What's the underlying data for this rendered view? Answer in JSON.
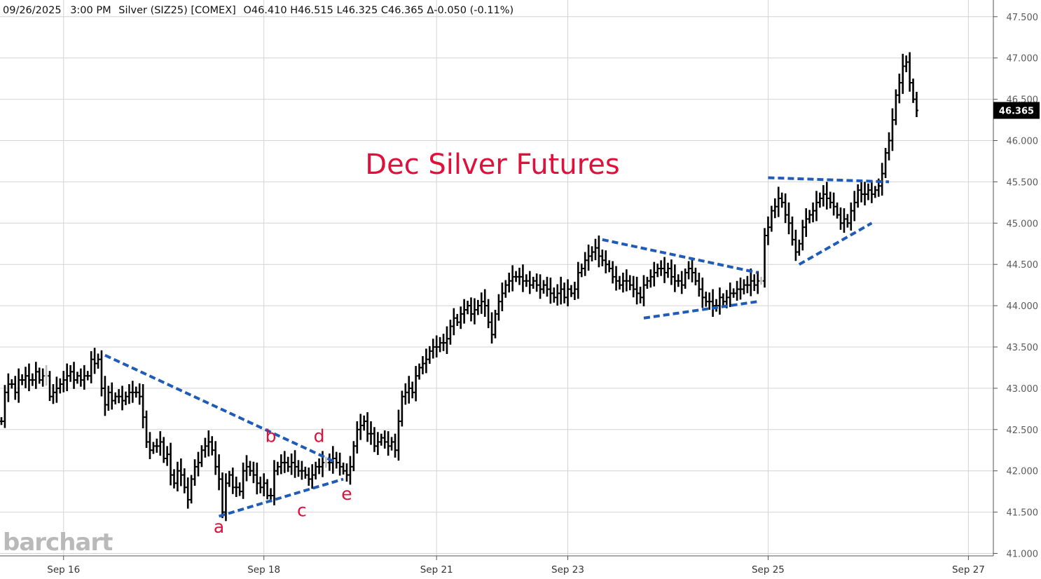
{
  "header": {
    "date": "09/26/2025",
    "time": "3:00 PM",
    "instrument": "Silver (SIZ25) [COMEX]",
    "ohlc": "O46.410 H46.515 L46.325 C46.365 Δ-0.050 (-0.11%)"
  },
  "branding": {
    "logo_text": "barchart"
  },
  "chart_data": {
    "type": "ohlc-bar",
    "title": "Dec Silver Futures",
    "title_color": "#e0103a",
    "bar_color": "#000000",
    "neutral_bar_color": "#bdbdbd",
    "trendline_color": "#1f5cb8",
    "wave_label_color": "#e0103a",
    "grid": true,
    "yaxis": {
      "position": "right",
      "ylim": [
        41.0,
        47.6
      ],
      "ticks": [
        41.0,
        41.5,
        42.0,
        42.5,
        43.0,
        43.5,
        44.0,
        44.5,
        45.0,
        45.5,
        46.0,
        46.5,
        47.0,
        47.5
      ],
      "tick_labels": [
        "41.000",
        "41.500",
        "42.000",
        "42.500",
        "43.000",
        "43.500",
        "44.000",
        "44.500",
        "45.000",
        "45.500",
        "46.000",
        "46.500",
        "47.000",
        "47.500"
      ]
    },
    "xaxis": {
      "xlim": [
        0,
        292
      ],
      "ticks": [
        {
          "x": 18,
          "label": "Sep 16"
        },
        {
          "x": 76,
          "label": "Sep 18"
        },
        {
          "x": 126,
          "label": "Sep 21"
        },
        {
          "x": 164,
          "label": "Sep 23"
        },
        {
          "x": 222,
          "label": "Sep 25"
        },
        {
          "x": 280,
          "label": "Sep 27"
        }
      ]
    },
    "last_price": {
      "value": 46.365,
      "label": "46.365"
    },
    "closes": [
      42.6,
      42.95,
      43.05,
      43.05,
      42.95,
      43.1,
      43.1,
      43.15,
      43.1,
      43.1,
      43.2,
      43.1,
      43.15,
      43.15,
      42.9,
      42.95,
      43.0,
      43.05,
      43.1,
      43.15,
      43.2,
      43.1,
      43.15,
      43.1,
      43.15,
      43.15,
      43.35,
      43.3,
      43.35,
      43.0,
      42.8,
      42.95,
      42.85,
      42.9,
      42.9,
      42.85,
      42.9,
      42.95,
      42.95,
      42.95,
      42.9,
      42.65,
      42.35,
      42.25,
      42.3,
      42.3,
      42.35,
      42.15,
      42.2,
      41.95,
      41.85,
      42.0,
      41.95,
      41.8,
      41.65,
      41.9,
      42.05,
      42.1,
      42.25,
      42.3,
      42.35,
      42.25,
      42.05,
      41.9,
      41.5,
      41.85,
      41.95,
      41.8,
      41.8,
      41.75,
      42.0,
      42.05,
      42.0,
      41.95,
      41.85,
      41.8,
      41.85,
      41.7,
      41.7,
      42.0,
      42.05,
      42.1,
      42.1,
      42.05,
      42.1,
      42.05,
      42.0,
      42.0,
      41.95,
      41.9,
      41.95,
      42.05,
      42.05,
      42.1,
      42.1,
      42.1,
      42.15,
      42.1,
      42.05,
      42.0,
      41.95,
      42.05,
      42.3,
      42.5,
      42.55,
      42.6,
      42.45,
      42.45,
      42.3,
      42.35,
      42.4,
      42.35,
      42.3,
      42.35,
      42.25,
      42.6,
      42.9,
      42.95,
      43.0,
      42.95,
      43.15,
      43.25,
      43.3,
      43.35,
      43.45,
      43.5,
      43.5,
      43.55,
      43.55,
      43.6,
      43.75,
      43.85,
      43.8,
      43.9,
      43.95,
      44.0,
      43.9,
      43.95,
      44.0,
      44.05,
      44.0,
      43.8,
      43.65,
      43.9,
      44.05,
      44.15,
      44.25,
      44.3,
      44.35,
      44.35,
      44.35,
      44.3,
      44.3,
      44.25,
      44.3,
      44.25,
      44.2,
      44.25,
      44.2,
      44.15,
      44.1,
      44.15,
      44.2,
      44.1,
      44.2,
      44.15,
      44.2,
      44.4,
      44.45,
      44.55,
      44.6,
      44.65,
      44.7,
      44.6,
      44.55,
      44.5,
      44.45,
      44.35,
      44.3,
      44.25,
      44.3,
      44.3,
      44.25,
      44.2,
      44.15,
      44.1,
      44.25,
      44.3,
      44.35,
      44.4,
      44.45,
      44.45,
      44.4,
      44.45,
      44.35,
      44.3,
      44.3,
      44.25,
      44.4,
      44.45,
      44.4,
      44.3,
      44.2,
      44.1,
      44.05,
      44.05,
      44.0,
      44.0,
      44.1,
      44.05,
      44.1,
      44.15,
      44.15,
      44.2,
      44.2,
      44.25,
      44.25,
      44.3,
      44.25,
      44.3,
      44.3,
      44.85,
      44.95,
      45.15,
      45.2,
      45.3,
      45.25,
      45.1,
      45.0,
      44.8,
      44.65,
      44.75,
      44.95,
      45.05,
      45.1,
      45.15,
      45.25,
      45.3,
      45.35,
      45.3,
      45.25,
      45.2,
      45.1,
      45.0,
      45.05,
      45.0,
      45.15,
      45.25,
      45.4,
      45.35,
      45.35,
      45.4,
      45.35,
      45.4,
      45.45,
      45.6,
      45.85,
      46.0,
      46.25,
      46.55,
      46.7,
      46.9,
      46.95,
      46.7,
      46.5,
      46.365
    ]
  },
  "trendlines": [
    {
      "name": "upper-trendline-1",
      "points": [
        [
          30,
          43.4
        ],
        [
          97,
          42.1
        ]
      ]
    },
    {
      "name": "lower-trendline-1",
      "points": [
        [
          63,
          41.45
        ],
        [
          99,
          41.9
        ]
      ]
    },
    {
      "name": "upper-trendline-2",
      "points": [
        [
          174,
          44.8
        ],
        [
          219,
          44.4
        ]
      ]
    },
    {
      "name": "lower-trendline-2",
      "points": [
        [
          186,
          43.85
        ],
        [
          219,
          44.05
        ]
      ]
    },
    {
      "name": "upper-trendline-3",
      "points": [
        [
          222,
          45.55
        ],
        [
          257,
          45.5
        ]
      ]
    },
    {
      "name": "lower-trendline-3",
      "points": [
        [
          231,
          44.5
        ],
        [
          252,
          45.0
        ]
      ]
    }
  ],
  "wave_labels": [
    {
      "text": "a",
      "x": 63,
      "y": 41.25
    },
    {
      "text": "b",
      "x": 78,
      "y": 42.35
    },
    {
      "text": "c",
      "x": 87,
      "y": 41.45
    },
    {
      "text": "d",
      "x": 92,
      "y": 42.35
    },
    {
      "text": "e",
      "x": 100,
      "y": 41.65
    }
  ]
}
